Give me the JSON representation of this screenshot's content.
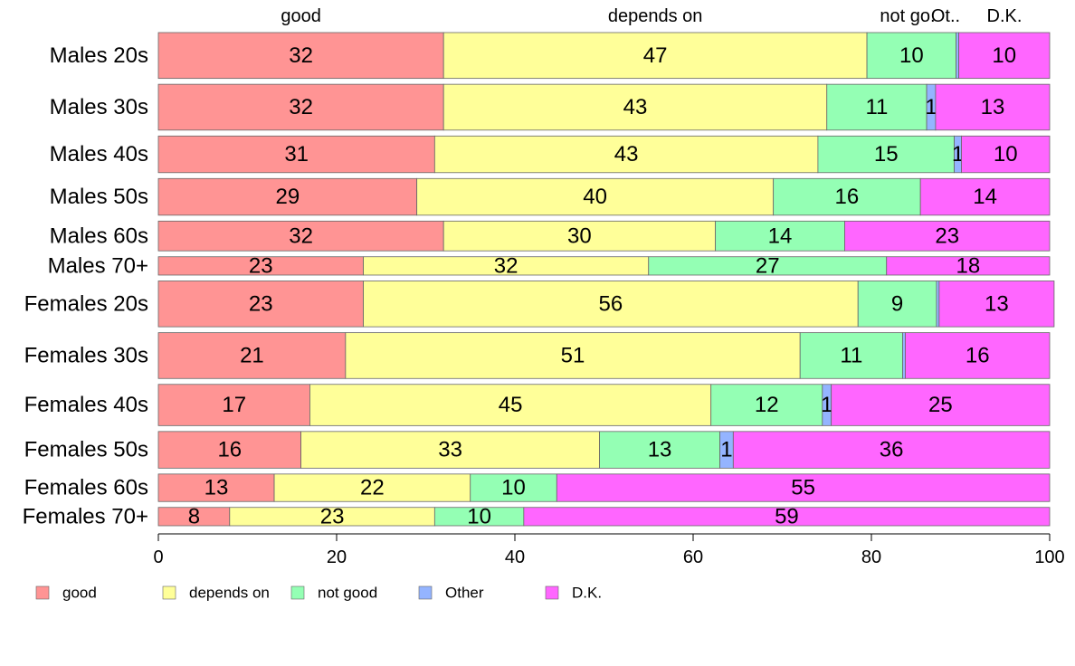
{
  "chart_data": {
    "type": "bar",
    "orientation": "horizontal",
    "stacked": true,
    "categories": [
      "Males 20s",
      "Males 30s",
      "Males 40s",
      "Males 50s",
      "Males 60s",
      "Males 70+",
      "Females 20s",
      "Females 30s",
      "Females 40s",
      "Females 50s",
      "Females 60s",
      "Females 70+"
    ],
    "series": [
      {
        "name": "good",
        "color": "#ff9494",
        "values": [
          32,
          32,
          31,
          29,
          32,
          23,
          23,
          21,
          17,
          16,
          13,
          8
        ],
        "labels": [
          "32",
          "32",
          "31",
          "29",
          "32",
          "23",
          "23",
          "21",
          "17",
          "16",
          "13",
          "8"
        ]
      },
      {
        "name": "depends on",
        "color": "#ffff99",
        "values": [
          47.5,
          43,
          43,
          40,
          30.5,
          32,
          55.5,
          51,
          45,
          33.5,
          22,
          23
        ],
        "labels": [
          "47",
          "43",
          "43",
          "40",
          "30",
          "32",
          "56",
          "51",
          "45",
          "33",
          "22",
          "23"
        ]
      },
      {
        "name": "not good",
        "color": "#94ffb4",
        "values": [
          10,
          11.2,
          15.3,
          16.5,
          14.5,
          26.7,
          8.8,
          11.5,
          12.5,
          13.5,
          9.7,
          10
        ],
        "labels": [
          "10",
          "11",
          "15",
          "16",
          "14",
          "27",
          "9",
          "11",
          "12",
          "13",
          "10",
          "10"
        ]
      },
      {
        "name": "Other",
        "color": "#94b4ff",
        "values": [
          0.3,
          1,
          0.8,
          0,
          0,
          0,
          0.3,
          0.3,
          1,
          1.5,
          0,
          0
        ],
        "labels": [
          "",
          "1",
          "1",
          "",
          "",
          "",
          "",
          "",
          "1",
          "1",
          "",
          ""
        ]
      },
      {
        "name": "D.K.",
        "color": "#ff66ff",
        "values": [
          10.2,
          12.8,
          9.9,
          14.5,
          23,
          18.3,
          12.9,
          16.2,
          24.5,
          35.5,
          55.3,
          59
        ],
        "labels": [
          "10",
          "13",
          "10",
          "14",
          "23",
          "18",
          "13",
          "16",
          "25",
          "36",
          "55",
          "59"
        ]
      }
    ],
    "row_weights": [
      1,
      1,
      0.8,
      0.8,
      0.65,
      0.4,
      1,
      1,
      0.9,
      0.8,
      0.6,
      0.4
    ],
    "top_labels": [
      "good",
      "depends on",
      "not go.",
      "Ot..",
      "D.K."
    ],
    "x_ticks": [
      "0",
      "20",
      "40",
      "60",
      "80",
      "100"
    ],
    "xlim": [
      0,
      100
    ],
    "grid": false,
    "legend_position": "bottom"
  }
}
